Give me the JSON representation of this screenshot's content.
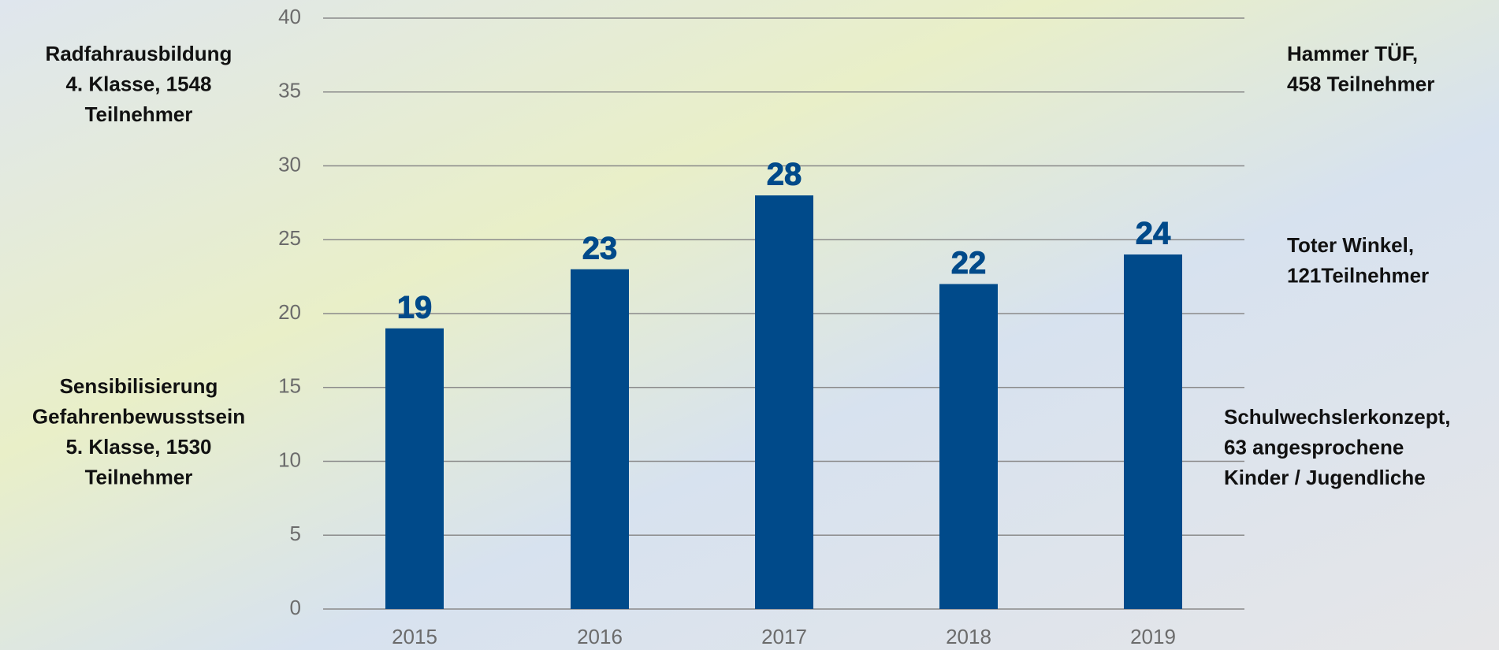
{
  "chart_data": {
    "type": "bar",
    "categories": [
      "2015",
      "2016",
      "2017",
      "2018",
      "2019"
    ],
    "values": [
      19,
      23,
      28,
      22,
      24
    ],
    "color": "#004a8a",
    "ylim": [
      0,
      40
    ],
    "yticks": [
      0,
      5,
      10,
      15,
      20,
      25,
      30,
      35,
      40
    ],
    "grid": true,
    "annotations": [
      {
        "lines": [
          "Radfahrausbildung",
          "4. Klasse, 1548",
          "Teilnehmer"
        ]
      },
      {
        "lines": [
          "Sensibilisierung",
          "Gefahrenbewusstsein",
          "5. Klasse, 1530",
          "Teilnehmer"
        ]
      },
      {
        "lines": [
          "Hammer TÜF,",
          "458 Teilnehmer"
        ]
      },
      {
        "lines": [
          "Toter Winkel,",
          "121Teilnehmer"
        ]
      },
      {
        "lines": [
          "Schulwechslerkonzept,",
          "63 angesprochene",
          "Kinder / Jugendliche"
        ]
      }
    ]
  }
}
